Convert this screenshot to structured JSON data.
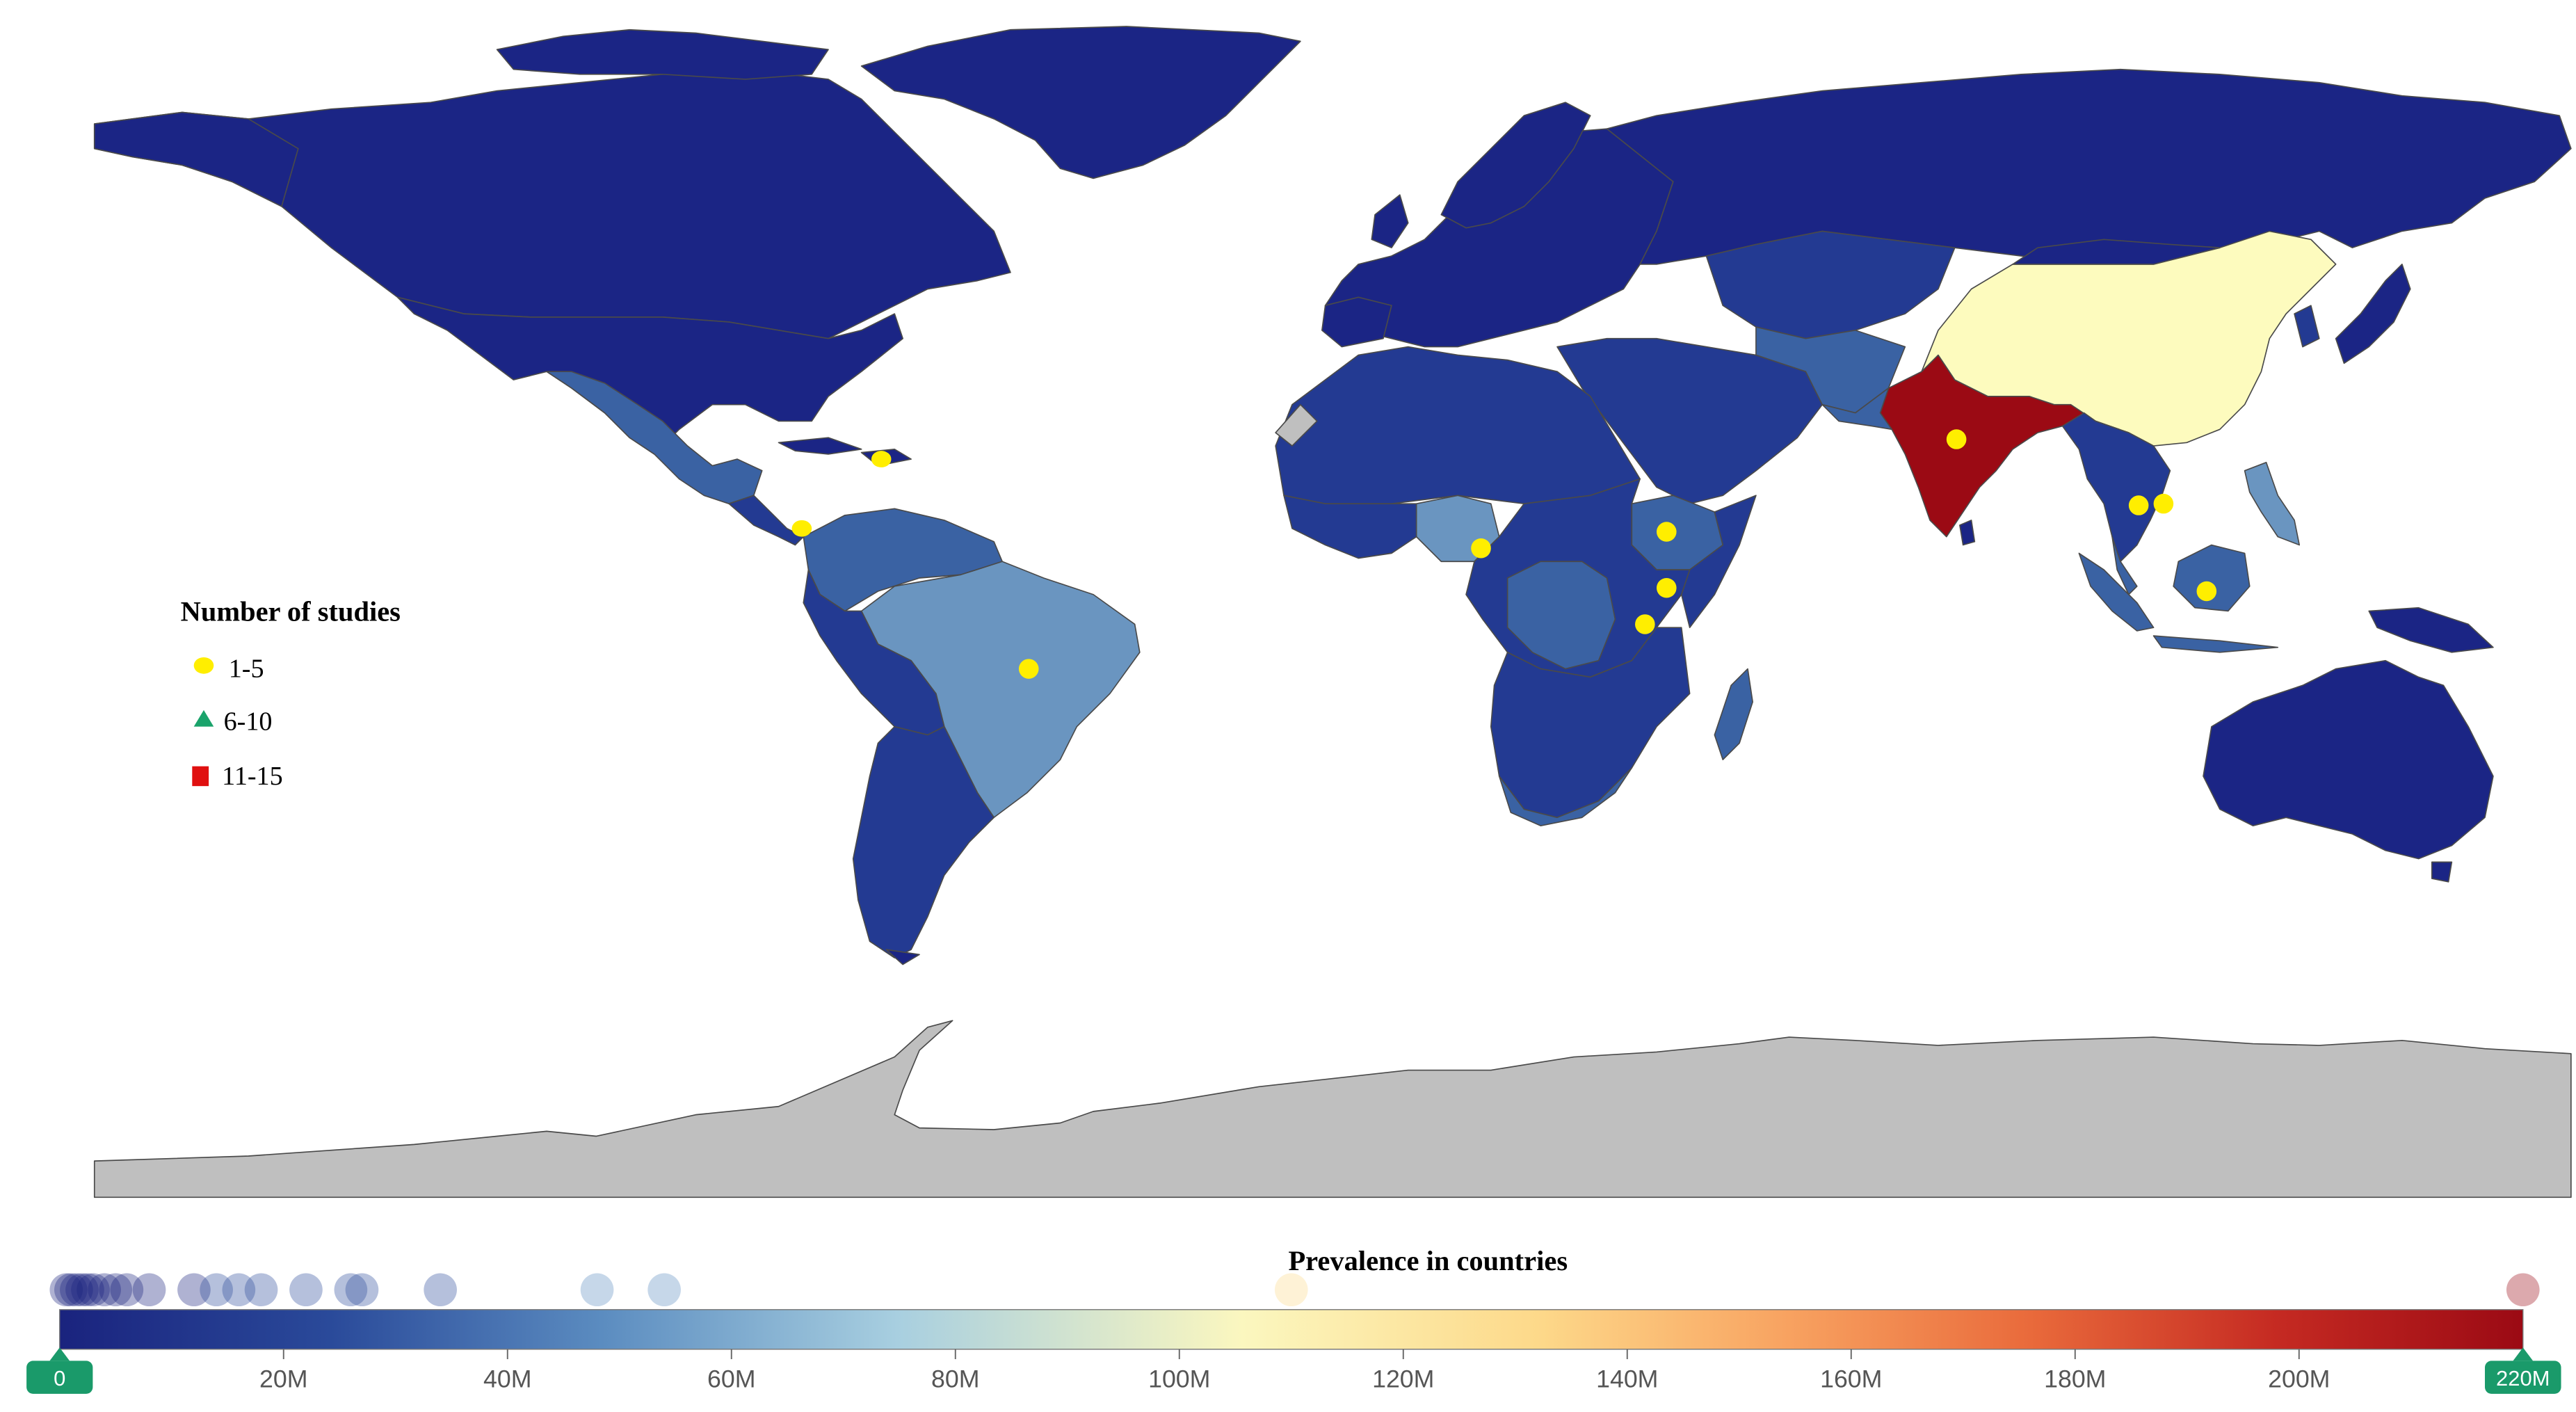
{
  "legend": {
    "title": "Number of studies",
    "items": [
      {
        "label": "1-5",
        "shape": "circle",
        "color": "#ffee00"
      },
      {
        "label": "6-10",
        "shape": "triangle",
        "color": "#1aa36b"
      },
      {
        "label": "11-15",
        "shape": "square",
        "color": "#e01010"
      }
    ]
  },
  "colorbar": {
    "title": "Prevalence in countries",
    "min": 0,
    "max": 220,
    "unit": "M",
    "ticks": [
      "20M",
      "40M",
      "60M",
      "80M",
      "100M",
      "120M",
      "140M",
      "160M",
      "180M",
      "200M",
      "220M"
    ],
    "tick_values": [
      20,
      40,
      60,
      80,
      100,
      120,
      140,
      160,
      180,
      200,
      220
    ],
    "min_handle_label": "0",
    "max_handle_label": "220M",
    "colors": [
      "#1a237e",
      "#2a4a9a",
      "#5b8cc0",
      "#a8cfe0",
      "#fbf7bf",
      "#fdd98a",
      "#f8a361",
      "#e96a3b",
      "#c52a22",
      "#9b0a14"
    ],
    "distribution_values": [
      0.5,
      1,
      1.5,
      2,
      2.5,
      3,
      4,
      5,
      6,
      8,
      12,
      14,
      16,
      18,
      22,
      26,
      27,
      34,
      48,
      54,
      110,
      220
    ],
    "handle_color": "#1a9a6a"
  },
  "map_colors": {
    "ocean": "#ffffff",
    "low": "#1b2585",
    "low_mid": "#233a92",
    "mid": "#3a62a3",
    "mid_light": "#6a95c0",
    "highest_india": "#9b0a14",
    "china": "#fdfbbe",
    "no_data": "#bfbfbf",
    "border": "#555555"
  },
  "study_markers": [
    {
      "country": "Haiti",
      "category": "1-5"
    },
    {
      "country": "Panama",
      "category": "1-5"
    },
    {
      "country": "Brazil",
      "category": "1-5"
    },
    {
      "country": "Nigeria",
      "category": "1-5"
    },
    {
      "country": "Ethiopia",
      "category": "1-5"
    },
    {
      "country": "Kenya",
      "category": "1-5"
    },
    {
      "country": "Tanzania",
      "category": "1-5"
    },
    {
      "country": "India",
      "category": "1-5"
    },
    {
      "country": "Cambodia",
      "category": "1-5"
    },
    {
      "country": "Vietnam",
      "category": "1-5"
    },
    {
      "country": "Indonesia",
      "category": "1-5"
    }
  ]
}
